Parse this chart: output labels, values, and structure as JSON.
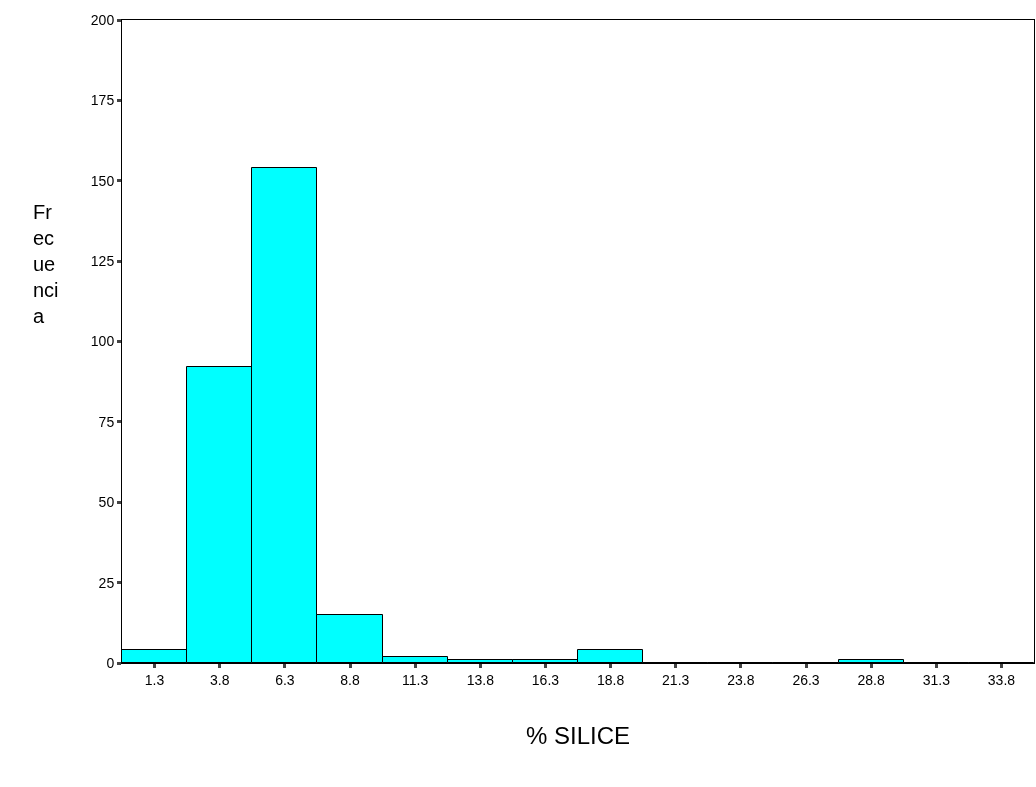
{
  "chart_data": {
    "type": "histogram",
    "xlabel": "% SILICE",
    "ylabel": "Fr\nec\nue\nnci\na",
    "bins": [
      0.05,
      2.55,
      5.05,
      7.55,
      10.05,
      12.55,
      15.05,
      17.55,
      20.05,
      22.55,
      25.05,
      27.55,
      30.05,
      32.55,
      35.05
    ],
    "values": [
      4,
      92,
      154,
      15,
      2,
      1,
      1,
      4,
      0,
      0,
      0,
      1,
      0,
      0
    ],
    "color": "#00ffff",
    "xlim": [
      0.05,
      35.05
    ],
    "xticks": [
      1.3,
      3.8,
      6.3,
      8.8,
      11.3,
      13.8,
      16.3,
      18.8,
      21.3,
      23.8,
      26.3,
      28.8,
      31.3,
      33.8
    ],
    "ylim": [
      0,
      200
    ],
    "yticks": [
      0,
      25,
      50,
      75,
      100,
      125,
      150,
      175,
      200
    ]
  }
}
